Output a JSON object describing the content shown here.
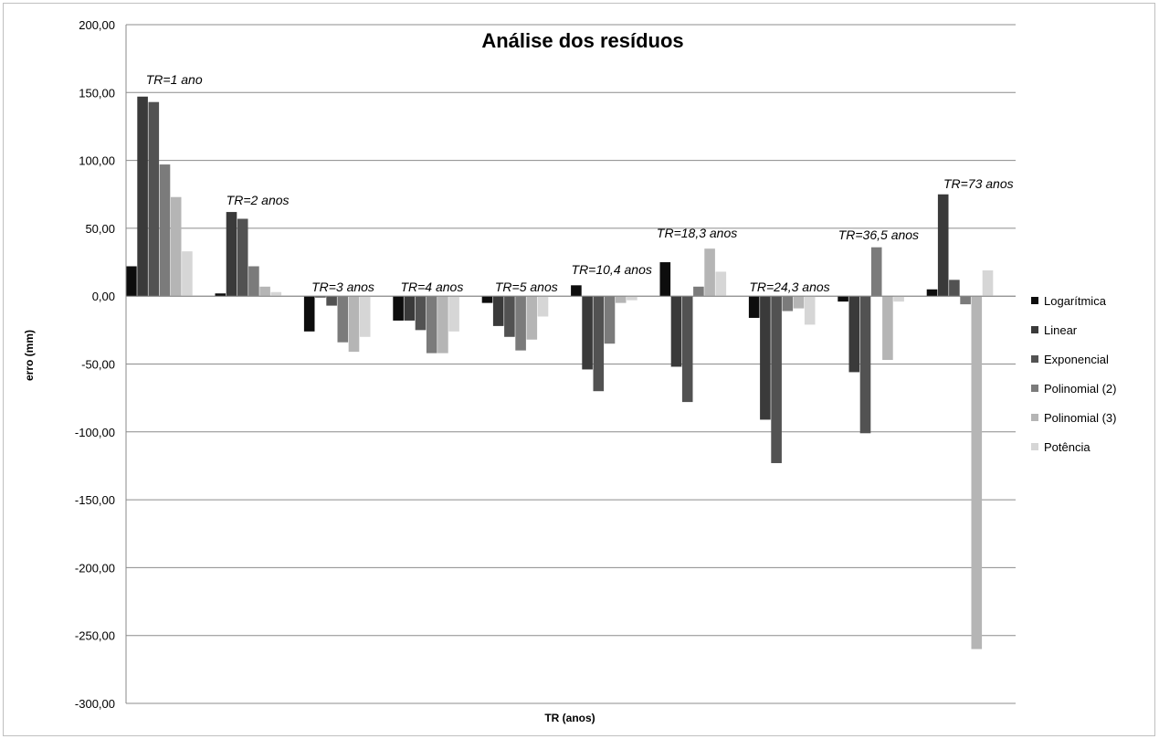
{
  "chart_data": {
    "type": "bar",
    "title": "Análise dos resíduos",
    "xlabel": "TR (anos)",
    "ylabel": "erro (mm)",
    "ylim": [
      -300,
      200
    ],
    "yticks": [
      "200,00",
      "150,00",
      "100,00",
      "50,00",
      "0,00",
      "-50,00",
      "-100,00",
      "-150,00",
      "-200,00",
      "-250,00",
      "-300,00"
    ],
    "ytick_values": [
      200,
      150,
      100,
      50,
      0,
      -50,
      -100,
      -150,
      -200,
      -250,
      -300
    ],
    "grid": true,
    "legend_position": "right",
    "categories": [
      "TR=1 ano",
      "TR=2 anos",
      "TR=3 anos",
      "TR=4 anos",
      "TR=5 anos",
      "TR=10,4 anos",
      "TR=18,3 anos",
      "TR=24,3 anos",
      "TR=36,5 anos",
      "TR=73 anos"
    ],
    "series": [
      {
        "name": "Logarítmica",
        "color": "#0d0d0d",
        "values": [
          22,
          2,
          -26,
          -18,
          -5,
          8,
          25,
          -16,
          -4,
          5
        ]
      },
      {
        "name": "Linear",
        "color": "#3a3a3a",
        "values": [
          147,
          62,
          -1,
          -18,
          -22,
          -54,
          -52,
          -91,
          -56,
          75
        ]
      },
      {
        "name": "Exponencial",
        "color": "#525252",
        "values": [
          143,
          57,
          -7,
          -25,
          -30,
          -70,
          -78,
          -123,
          -101,
          12
        ]
      },
      {
        "name": "Polinomial (2)",
        "color": "#7b7b7b",
        "values": [
          97,
          22,
          -34,
          -42,
          -40,
          -35,
          7,
          -11,
          36,
          -6
        ]
      },
      {
        "name": "Polinomial (3)",
        "color": "#b5b5b5",
        "values": [
          73,
          7,
          -41,
          -42,
          -32,
          -5,
          35,
          -9,
          -47,
          -260
        ]
      },
      {
        "name": "Potência",
        "color": "#d6d6d6",
        "values": [
          33,
          3,
          -30,
          -26,
          -15,
          -3,
          18,
          -21,
          -4,
          19
        ]
      }
    ]
  }
}
